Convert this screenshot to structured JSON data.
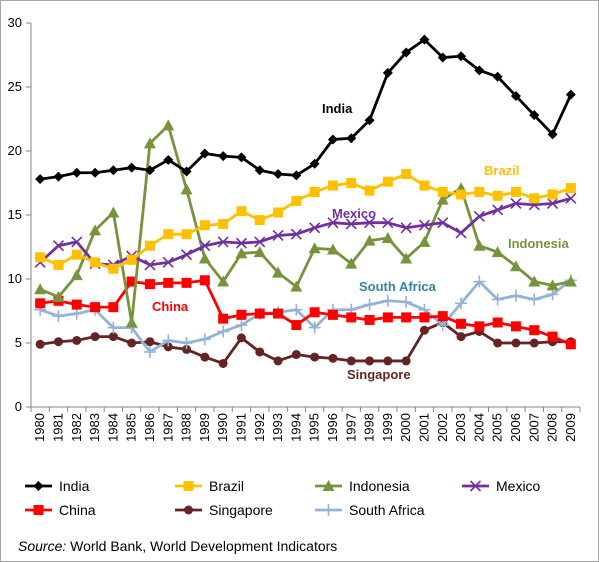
{
  "chart_data": {
    "type": "line",
    "x": [
      "1980",
      "1981",
      "1982",
      "1983",
      "1984",
      "1985",
      "1986",
      "1987",
      "1988",
      "1989",
      "1990",
      "1991",
      "1992",
      "1993",
      "1994",
      "1995",
      "1996",
      "1997",
      "1998",
      "1999",
      "2000",
      "2001",
      "2002",
      "2003",
      "2004",
      "2005",
      "2006",
      "2007",
      "2008",
      "2009"
    ],
    "ylim": [
      0,
      30
    ],
    "yticks": [
      "0",
      "5",
      "10",
      "15",
      "20",
      "25",
      "30"
    ],
    "grid": false,
    "legend": "bottom",
    "series": [
      {
        "name": "India",
        "color": "#000000",
        "marker": "diamond",
        "annotation": "India",
        "values": [
          17.8,
          18.0,
          18.3,
          18.3,
          18.5,
          18.7,
          18.5,
          19.3,
          18.4,
          19.8,
          19.6,
          19.5,
          18.5,
          18.2,
          18.1,
          19.0,
          20.9,
          21.0,
          22.4,
          26.1,
          27.7,
          28.7,
          27.3,
          27.4,
          26.3,
          25.8,
          24.3,
          22.8,
          21.3,
          24.4
        ]
      },
      {
        "name": "Brazil",
        "color": "#ffc000",
        "marker": "square",
        "annotation": "Brazil",
        "values": [
          11.7,
          11.1,
          11.9,
          11.3,
          10.8,
          11.5,
          12.6,
          13.5,
          13.5,
          14.2,
          14.3,
          15.3,
          14.6,
          15.2,
          16.1,
          16.8,
          17.3,
          17.5,
          16.9,
          17.6,
          18.2,
          17.3,
          16.8,
          16.6,
          16.8,
          16.5,
          16.8,
          16.3,
          16.6,
          17.1
        ]
      },
      {
        "name": "Indonesia",
        "color": "#77933c",
        "marker": "triangle",
        "annotation": "Indonesia",
        "values": [
          9.2,
          8.6,
          10.3,
          13.8,
          15.2,
          6.6,
          20.6,
          22.0,
          17.0,
          11.6,
          9.8,
          12.0,
          12.1,
          10.5,
          9.4,
          12.4,
          12.3,
          11.2,
          13.0,
          13.2,
          11.6,
          12.9,
          16.2,
          17.1,
          12.6,
          12.1,
          11.0,
          9.8,
          9.5,
          9.8
        ]
      },
      {
        "name": "Mexico",
        "color": "#7030a0",
        "marker": "x",
        "annotation": "Mexico",
        "values": [
          11.3,
          12.6,
          12.9,
          11.2,
          11.1,
          11.8,
          11.1,
          11.3,
          11.9,
          12.6,
          12.9,
          12.8,
          12.9,
          13.4,
          13.5,
          14.0,
          14.4,
          14.3,
          14.4,
          14.4,
          14.0,
          14.2,
          14.4,
          13.6,
          14.9,
          15.4,
          15.9,
          15.8,
          15.9,
          16.3
        ]
      },
      {
        "name": "China",
        "color": "#ff0000",
        "marker": "square",
        "annotation": "China",
        "values": [
          8.1,
          8.3,
          8.0,
          7.8,
          7.8,
          9.8,
          9.6,
          9.7,
          9.7,
          9.9,
          6.9,
          7.2,
          7.3,
          7.3,
          6.4,
          7.4,
          7.2,
          7.0,
          6.8,
          7.0,
          7.0,
          7.0,
          7.1,
          6.5,
          6.3,
          6.6,
          6.3,
          6.0,
          5.5,
          4.9
        ]
      },
      {
        "name": "Singapore",
        "color": "#632423",
        "marker": "circle",
        "annotation": "Singapore",
        "values": [
          4.9,
          5.1,
          5.2,
          5.5,
          5.5,
          5.0,
          5.1,
          4.7,
          4.5,
          3.9,
          3.4,
          5.4,
          4.3,
          3.6,
          4.1,
          3.9,
          3.8,
          3.6,
          3.6,
          3.6,
          3.6,
          6.0,
          6.6,
          5.5,
          5.9,
          5.0,
          5.0,
          5.0,
          5.1,
          5.1
        ]
      },
      {
        "name": "South Africa",
        "color": "#95b3d7",
        "marker": "plus",
        "annotation": "South Africa",
        "values": [
          7.6,
          7.1,
          7.3,
          7.6,
          6.2,
          6.2,
          4.3,
          5.2,
          5.0,
          5.3,
          5.9,
          6.4,
          7.3,
          7.4,
          7.6,
          6.2,
          7.6,
          7.6,
          8.0,
          8.3,
          8.2,
          7.6,
          6.4,
          8.1,
          9.8,
          8.4,
          8.7,
          8.4,
          8.8,
          9.9
        ]
      }
    ],
    "source_label": "Source:",
    "source_text": " World Bank, World Development Indicators"
  }
}
